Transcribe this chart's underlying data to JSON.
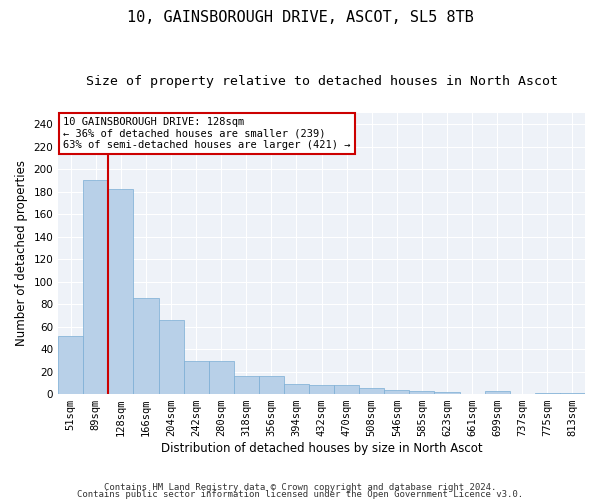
{
  "title": "10, GAINSBOROUGH DRIVE, ASCOT, SL5 8TB",
  "subtitle": "Size of property relative to detached houses in North Ascot",
  "xlabel": "Distribution of detached houses by size in North Ascot",
  "ylabel": "Number of detached properties",
  "categories": [
    "51sqm",
    "89sqm",
    "128sqm",
    "166sqm",
    "204sqm",
    "242sqm",
    "280sqm",
    "318sqm",
    "356sqm",
    "394sqm",
    "432sqm",
    "470sqm",
    "508sqm",
    "546sqm",
    "585sqm",
    "623sqm",
    "661sqm",
    "699sqm",
    "737sqm",
    "775sqm",
    "813sqm"
  ],
  "values": [
    52,
    190,
    182,
    85,
    66,
    29,
    29,
    16,
    16,
    9,
    8,
    8,
    5,
    4,
    3,
    2,
    0,
    3,
    0,
    1,
    1
  ],
  "bar_color": "#b8d0e8",
  "bar_edge_color": "#7aadd4",
  "highlight_index": 2,
  "highlight_line_color": "#cc0000",
  "ylim": [
    0,
    250
  ],
  "yticks": [
    0,
    20,
    40,
    60,
    80,
    100,
    120,
    140,
    160,
    180,
    200,
    220,
    240
  ],
  "annotation_text": "10 GAINSBOROUGH DRIVE: 128sqm\n← 36% of detached houses are smaller (239)\n63% of semi-detached houses are larger (421) →",
  "annotation_box_color": "#ffffff",
  "annotation_box_edge": "#cc0000",
  "footer1": "Contains HM Land Registry data © Crown copyright and database right 2024.",
  "footer2": "Contains public sector information licensed under the Open Government Licence v3.0.",
  "bg_color": "#eef2f8",
  "grid_color": "#ffffff",
  "fig_bg_color": "#ffffff",
  "title_fontsize": 11,
  "subtitle_fontsize": 9.5,
  "axis_label_fontsize": 8.5,
  "tick_fontsize": 7.5,
  "footer_fontsize": 6.5,
  "annotation_fontsize": 7.5
}
